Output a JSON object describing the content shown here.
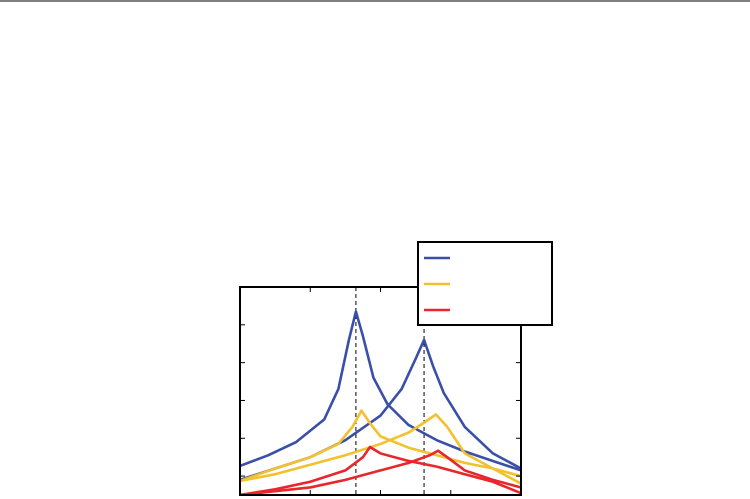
{
  "chart_data": {
    "type": "line",
    "xlim": [
      0,
      4
    ],
    "xticks": [
      1,
      2,
      3
    ],
    "ylim": [
      -0.5,
      5
    ],
    "yticks": [
      0,
      1,
      2,
      3,
      4
    ],
    "vlines": [
      1.65,
      2.62
    ],
    "legend": "upper right",
    "series": [
      {
        "color": "#3a4fa8",
        "x": [
          0,
          0.4,
          0.8,
          1.2,
          1.4,
          1.55,
          1.65,
          1.75,
          1.9,
          2.1,
          2.4,
          2.8,
          3.2,
          3.6,
          4.0
        ],
        "values": [
          0.27,
          0.55,
          0.9,
          1.5,
          2.3,
          3.6,
          4.35,
          3.7,
          2.6,
          1.9,
          1.35,
          0.95,
          0.65,
          0.4,
          0.15
        ]
      },
      {
        "color": "#3a4fa8",
        "x": [
          0,
          0.5,
          1.0,
          1.5,
          2.0,
          2.3,
          2.5,
          2.62,
          2.75,
          2.9,
          3.2,
          3.6,
          4.0
        ],
        "values": [
          -0.1,
          0.2,
          0.5,
          0.95,
          1.6,
          2.3,
          3.1,
          3.6,
          2.9,
          2.2,
          1.3,
          0.6,
          0.2
        ]
      },
      {
        "color": "#f2c12e",
        "x": [
          0,
          0.5,
          1.0,
          1.4,
          1.6,
          1.73,
          1.85,
          2.0,
          2.4,
          2.8,
          3.2,
          3.6,
          4.0
        ],
        "values": [
          -0.13,
          0.2,
          0.5,
          0.85,
          1.3,
          1.73,
          1.4,
          1.05,
          0.75,
          0.55,
          0.35,
          0.2,
          0.0
        ]
      },
      {
        "color": "#f2c12e",
        "x": [
          0,
          0.5,
          1.0,
          1.5,
          2.0,
          2.4,
          2.65,
          2.79,
          2.95,
          3.2,
          3.6,
          4.0
        ],
        "values": [
          -0.13,
          0.05,
          0.3,
          0.55,
          0.85,
          1.15,
          1.45,
          1.63,
          1.3,
          0.6,
          0.2,
          -0.2
        ]
      },
      {
        "color": "#e8262d",
        "x": [
          0,
          0.5,
          1.0,
          1.5,
          1.75,
          1.85,
          2.0,
          2.4,
          2.8,
          3.2,
          3.6,
          4.0
        ],
        "values": [
          -0.5,
          -0.35,
          -0.15,
          0.15,
          0.5,
          0.77,
          0.6,
          0.4,
          0.25,
          0.05,
          -0.15,
          -0.45
        ]
      },
      {
        "color": "#e8262d",
        "x": [
          0,
          1.0,
          1.5,
          2.0,
          2.4,
          2.7,
          2.82,
          2.95,
          3.2,
          3.6,
          4.0
        ],
        "values": [
          -0.5,
          -0.3,
          -0.1,
          0.15,
          0.35,
          0.55,
          0.67,
          0.5,
          0.15,
          -0.1,
          -0.3
        ]
      }
    ]
  }
}
